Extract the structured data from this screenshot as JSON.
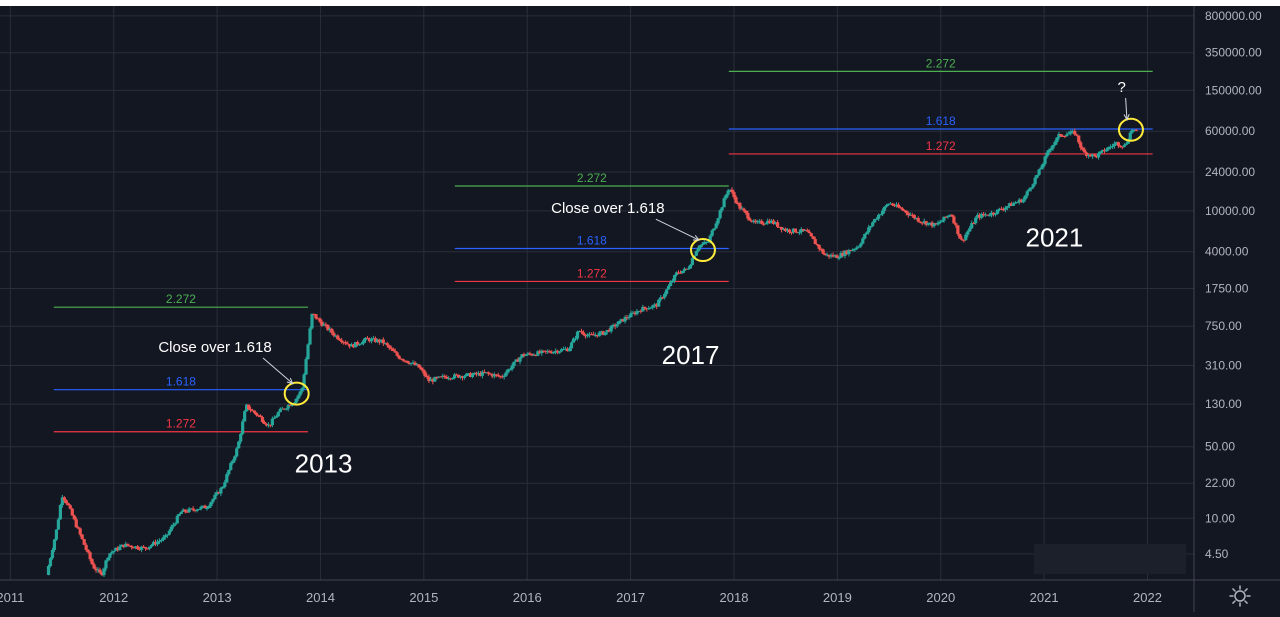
{
  "chart_data": {
    "type": "candlestick",
    "y_scale": "log",
    "ylim": [
      2.5,
      1000000
    ],
    "xlim": [
      2010.9,
      2022.45
    ],
    "x_ticks": [
      {
        "value": 2011,
        "label": "2011"
      },
      {
        "value": 2012,
        "label": "2012"
      },
      {
        "value": 2013,
        "label": "2013"
      },
      {
        "value": 2014,
        "label": "2014"
      },
      {
        "value": 2015,
        "label": "2015"
      },
      {
        "value": 2016,
        "label": "2016"
      },
      {
        "value": 2017,
        "label": "2017"
      },
      {
        "value": 2018,
        "label": "2018"
      },
      {
        "value": 2019,
        "label": "2019"
      },
      {
        "value": 2020,
        "label": "2020"
      },
      {
        "value": 2021,
        "label": "2021"
      },
      {
        "value": 2022,
        "label": "2022"
      }
    ],
    "y_ticks": [
      {
        "value": 800000,
        "label": "800000.00"
      },
      {
        "value": 350000,
        "label": "350000.00"
      },
      {
        "value": 150000,
        "label": "150000.00"
      },
      {
        "value": 60000,
        "label": "60000.00"
      },
      {
        "value": 24000,
        "label": "24000.00"
      },
      {
        "value": 10000,
        "label": "10000.00"
      },
      {
        "value": 4000,
        "label": "4000.00"
      },
      {
        "value": 1750,
        "label": "1750.00"
      },
      {
        "value": 750,
        "label": "750.00"
      },
      {
        "value": 310,
        "label": "310.00"
      },
      {
        "value": 130,
        "label": "130.00"
      },
      {
        "value": 50,
        "label": "50.00"
      },
      {
        "value": 22,
        "label": "22.00"
      },
      {
        "value": 10,
        "label": "10.00"
      },
      {
        "value": 4.5,
        "label": "4.50"
      }
    ],
    "price_anchors": [
      [
        2011.35,
        2.8
      ],
      [
        2011.45,
        8
      ],
      [
        2011.5,
        17
      ],
      [
        2011.55,
        14
      ],
      [
        2011.7,
        6
      ],
      [
        2011.8,
        3.4
      ],
      [
        2011.88,
        2.8
      ],
      [
        2011.95,
        4.5
      ],
      [
        2012.1,
        5.5
      ],
      [
        2012.3,
        5.1
      ],
      [
        2012.5,
        6.5
      ],
      [
        2012.65,
        11.5
      ],
      [
        2012.9,
        13
      ],
      [
        2013.05,
        20
      ],
      [
        2013.2,
        50
      ],
      [
        2013.28,
        125
      ],
      [
        2013.4,
        100
      ],
      [
        2013.5,
        80
      ],
      [
        2013.6,
        110
      ],
      [
        2013.75,
        140
      ],
      [
        2013.82,
        180
      ],
      [
        2013.88,
        500
      ],
      [
        2013.92,
        1000
      ],
      [
        2014.0,
        820
      ],
      [
        2014.15,
        600
      ],
      [
        2014.3,
        480
      ],
      [
        2014.45,
        560
      ],
      [
        2014.6,
        530
      ],
      [
        2014.75,
        380
      ],
      [
        2014.95,
        300
      ],
      [
        2015.05,
        220
      ],
      [
        2015.2,
        240
      ],
      [
        2015.45,
        250
      ],
      [
        2015.6,
        260
      ],
      [
        2015.75,
        240
      ],
      [
        2015.95,
        390
      ],
      [
        2016.2,
        420
      ],
      [
        2016.4,
        450
      ],
      [
        2016.5,
        680
      ],
      [
        2016.6,
        600
      ],
      [
        2016.75,
        650
      ],
      [
        2016.95,
        900
      ],
      [
        2017.1,
        1100
      ],
      [
        2017.25,
        1200
      ],
      [
        2017.35,
        1700
      ],
      [
        2017.45,
        2500
      ],
      [
        2017.55,
        2700
      ],
      [
        2017.65,
        4500
      ],
      [
        2017.75,
        5000
      ],
      [
        2017.85,
        9000
      ],
      [
        2017.95,
        17000
      ],
      [
        2018.05,
        11000
      ],
      [
        2018.2,
        7500
      ],
      [
        2018.35,
        8000
      ],
      [
        2018.5,
        6500
      ],
      [
        2018.7,
        6300
      ],
      [
        2018.88,
        3700
      ],
      [
        2019.0,
        3600
      ],
      [
        2019.2,
        4500
      ],
      [
        2019.35,
        8000
      ],
      [
        2019.5,
        12000
      ],
      [
        2019.65,
        10000
      ],
      [
        2019.8,
        8000
      ],
      [
        2019.95,
        7200
      ],
      [
        2020.1,
        9500
      ],
      [
        2020.2,
        5000
      ],
      [
        2020.35,
        8800
      ],
      [
        2020.5,
        9500
      ],
      [
        2020.65,
        11200
      ],
      [
        2020.8,
        13000
      ],
      [
        2020.95,
        24000
      ],
      [
        2021.05,
        40000
      ],
      [
        2021.15,
        55000
      ],
      [
        2021.3,
        58000
      ],
      [
        2021.38,
        37000
      ],
      [
        2021.5,
        34000
      ],
      [
        2021.6,
        40000
      ],
      [
        2021.7,
        46000
      ],
      [
        2021.78,
        43000
      ],
      [
        2021.85,
        63000
      ],
      [
        2021.9,
        58000
      ]
    ],
    "fib_levels": [
      {
        "cycle": "2013",
        "level": "2.272",
        "price": 1150,
        "x_start": 2011.42,
        "x_end": 2013.88,
        "color": "#4caf50"
      },
      {
        "cycle": "2013",
        "level": "1.618",
        "price": 180,
        "x_start": 2011.42,
        "x_end": 2013.88,
        "color": "#2962ff"
      },
      {
        "cycle": "2013",
        "level": "1.272",
        "price": 70,
        "x_start": 2011.42,
        "x_end": 2013.88,
        "color": "#f23645"
      },
      {
        "cycle": "2017",
        "level": "2.272",
        "price": 17500,
        "x_start": 2015.3,
        "x_end": 2017.95,
        "color": "#4caf50"
      },
      {
        "cycle": "2017",
        "level": "1.618",
        "price": 4300,
        "x_start": 2015.3,
        "x_end": 2017.95,
        "color": "#2962ff"
      },
      {
        "cycle": "2017",
        "level": "1.272",
        "price": 2050,
        "x_start": 2015.3,
        "x_end": 2017.95,
        "color": "#f23645"
      },
      {
        "cycle": "2021",
        "level": "2.272",
        "price": 230000,
        "x_start": 2017.95,
        "x_end": 2022.05,
        "color": "#4caf50"
      },
      {
        "cycle": "2021",
        "level": "1.618",
        "price": 63000,
        "x_start": 2017.95,
        "x_end": 2022.05,
        "color": "#2962ff"
      },
      {
        "cycle": "2021",
        "level": "1.272",
        "price": 36000,
        "x_start": 2017.95,
        "x_end": 2022.05,
        "color": "#f23645"
      }
    ],
    "annotations": [
      {
        "text": "2013",
        "x": 2013.75,
        "price": 28,
        "size": "large"
      },
      {
        "text": "2017",
        "x": 2017.3,
        "price": 320,
        "size": "large"
      },
      {
        "text": "2021",
        "x": 2020.82,
        "price": 4500,
        "size": "large"
      },
      {
        "text": "Close over 1.618",
        "x": 2012.98,
        "price": 420,
        "size": "small"
      },
      {
        "text": "Close over 1.618",
        "x": 2016.78,
        "price": 9500,
        "size": "small"
      },
      {
        "text": "?",
        "x": 2021.75,
        "price": 145000,
        "size": "small"
      }
    ],
    "circles": [
      {
        "x": 2013.77,
        "price": 165
      },
      {
        "x": 2017.7,
        "price": 4150
      },
      {
        "x": 2021.84,
        "price": 62000
      }
    ],
    "colors": {
      "background": "#131722",
      "grid": "#2a2e39",
      "axis_text": "#b2b5be",
      "up": "#26a69a",
      "down": "#ef5350",
      "highlight": "#ffeb3b",
      "annotation": "#ffffff"
    }
  },
  "ui": {
    "settings_icon": "gear-icon"
  }
}
